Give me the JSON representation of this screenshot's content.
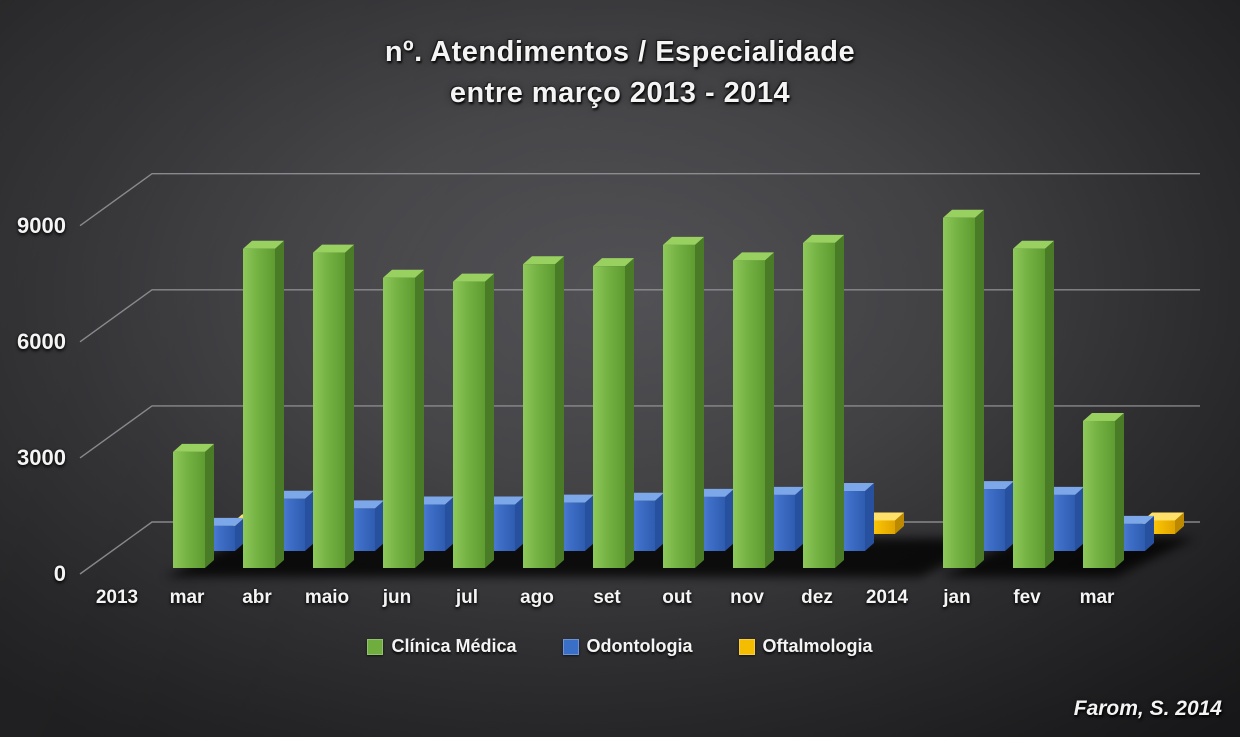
{
  "chart_data": {
    "type": "bar",
    "variant": "3d-column",
    "title_line1": "nº. Atendimentos / Especialidade",
    "title_line2": "entre março 2013 - 2014",
    "attribution": "Farom, S. 2014",
    "y_ticks": [
      0,
      3000,
      6000,
      9000
    ],
    "ylim": [
      0,
      10500
    ],
    "grid": true,
    "legend_position": "bottom",
    "categories": [
      "2013",
      "mar",
      "abr",
      "maio",
      "jun",
      "jul",
      "ago",
      "set",
      "out",
      "nov",
      "dez",
      "2014",
      "jan",
      "fev",
      "mar"
    ],
    "series": [
      {
        "name": "Clínica Médica",
        "color": "#6fae3e",
        "values": [
          null,
          3000,
          8250,
          8150,
          7500,
          7400,
          7850,
          7800,
          8350,
          7950,
          8400,
          null,
          9050,
          8250,
          3800
        ]
      },
      {
        "name": "Odontologia",
        "color": "#3a6fc8",
        "values": [
          null,
          650,
          1350,
          1100,
          1200,
          1200,
          1250,
          1300,
          1400,
          1450,
          1550,
          null,
          1600,
          1450,
          700
        ]
      },
      {
        "name": "Oftalmologia",
        "color": "#f5bd02",
        "values": [
          null,
          300,
          300,
          300,
          300,
          300,
          300,
          300,
          300,
          300,
          350,
          null,
          300,
          300,
          350
        ]
      }
    ]
  },
  "colors": {
    "background_center": "#515155",
    "background_edge": "#1a1a1c",
    "gridline": "#98989b",
    "text": "#f4f4f4"
  }
}
